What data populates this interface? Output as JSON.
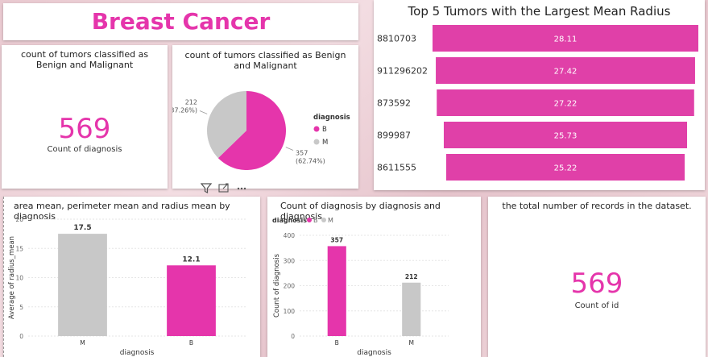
{
  "header": {
    "title": "Breast Cancer"
  },
  "card_diagnosis": {
    "title": "count of tumors classified as Benign and Malignant",
    "value": "569",
    "label": "Count of diagnosis"
  },
  "card_id": {
    "title": "the total number of records in the dataset.",
    "value": "569",
    "label": "Count of id"
  },
  "colors": {
    "benign": "#e535ab",
    "malignant": "#c8c8c8",
    "accent": "#e535ab",
    "funnel": "#e040a8"
  },
  "chart_data": [
    {
      "type": "pie",
      "title": "count of tumors classified as Benign and Malignant",
      "legend_title": "diagnosis",
      "legend_position": "right",
      "categories": [
        "B",
        "M"
      ],
      "values": [
        357,
        212
      ],
      "data_labels": [
        "357\n(62.74%)",
        "212\n(37.26%)"
      ]
    },
    {
      "type": "bar",
      "orientation": "horizontal",
      "title": "Top 5 Tumors with the Largest Mean Radius",
      "categories": [
        "8810703",
        "911296202",
        "873592",
        "899987",
        "8611555"
      ],
      "values": [
        28.11,
        27.42,
        27.22,
        25.73,
        25.22
      ]
    },
    {
      "type": "bar",
      "title": "area mean, perimeter mean and radius mean by diagnosis",
      "categories": [
        "M",
        "B"
      ],
      "values": [
        17.5,
        12.1
      ],
      "xlabel": "diagnosis",
      "ylabel": "Average of radius_mean",
      "ylim": [
        0,
        20
      ],
      "yticks": [
        0,
        5,
        10,
        15,
        20
      ]
    },
    {
      "type": "bar",
      "title": "Count of diagnosis by diagnosis and diagnosis",
      "legend_title": "diagnosis",
      "legend_position": "top-left",
      "legend": [
        "B",
        "M"
      ],
      "categories": [
        "B",
        "M"
      ],
      "values": [
        357,
        212
      ],
      "xlabel": "diagnosis",
      "ylabel": "Count of diagnosis",
      "ylim": [
        0,
        400
      ],
      "yticks": [
        0,
        100,
        200,
        300,
        400
      ]
    }
  ]
}
